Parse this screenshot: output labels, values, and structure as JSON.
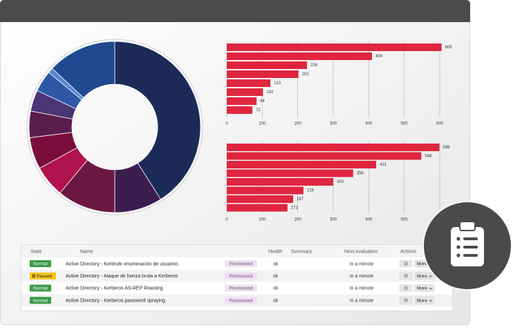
{
  "chart_data": [
    {
      "type": "donut",
      "values": [
        41,
        9,
        11,
        6,
        6,
        5,
        4,
        4,
        1,
        13
      ],
      "colors": [
        "#1b2a57",
        "#3b1e4f",
        "#6a1842",
        "#b0124d",
        "#7a0e3a",
        "#5a1e4e",
        "#4a3576",
        "#2e58a6",
        "#5a86cf",
        "#1f4a8f"
      ]
    },
    {
      "type": "bar",
      "orientation": "horizontal",
      "color": "#e0263f",
      "grid": true,
      "values": [
        605,
        409,
        226,
        202,
        123,
        102,
        84,
        72
      ],
      "xlim": [
        0,
        600
      ],
      "xticks": [
        0,
        100,
        200,
        300,
        400,
        500,
        600
      ]
    },
    {
      "type": "bar",
      "orientation": "horizontal",
      "color": "#e0263f",
      "grid": true,
      "values": [
        599,
        548,
        421,
        356,
        300,
        216,
        187,
        171
      ],
      "xlim": [
        0,
        600
      ],
      "xticks": [
        0,
        100,
        200,
        300,
        400,
        500,
        600
      ]
    }
  ],
  "table": {
    "header": [
      "State",
      "Name",
      "Health",
      "Summary",
      "Next evaluation",
      "Actions"
    ],
    "rows": [
      {
        "state": "Normal",
        "name": "Active Directory - Kerbrute enumeración de usuarios",
        "template": "Provisioned",
        "health": "ok",
        "next": "in a minute",
        "more": "More"
      },
      {
        "state": "Paused",
        "name": "Active Directory - Ataque de fuerza bruta a Kerberos",
        "template": "Provisioned",
        "health": "ok",
        "next": "in a minute",
        "more": "More"
      },
      {
        "state": "Normal",
        "name": "Active Directory - Kerberos AS-REP Roasting",
        "template": "Provisioned",
        "health": "ok",
        "next": "in a minute",
        "more": "More"
      },
      {
        "state": "Normal",
        "name": "Active Directory - Kerberos password spraying",
        "template": "Provisioned",
        "health": "ok",
        "next": "in a minute",
        "more": "More"
      }
    ]
  }
}
